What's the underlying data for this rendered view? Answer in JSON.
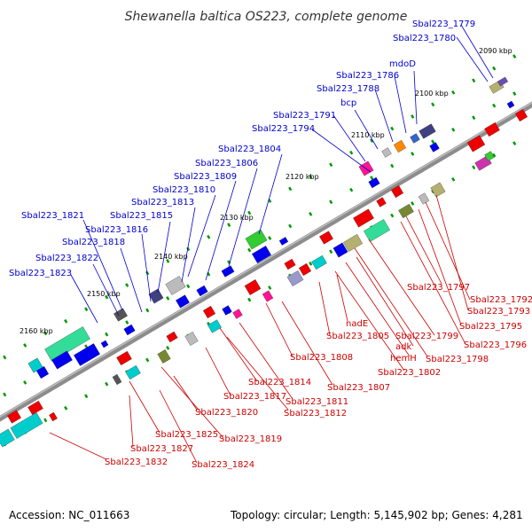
{
  "title": "Shewanella baltica OS223, complete genome",
  "footer": {
    "accession": "Accession: NC_011663",
    "summary": "Topology: circular; Length: 5,145,902 bp; Genes: 4,281"
  },
  "colors": {
    "backbone": "#8c8c8c",
    "label_top": "#0000cc",
    "label_bottom": "#cc0000",
    "tick": "#009900"
  },
  "kbp_labels": [
    {
      "text": "2090 kbp"
    },
    {
      "text": "2100 kbp"
    },
    {
      "text": "2110 kbp"
    },
    {
      "text": "2120 kbp"
    },
    {
      "text": "2130 kbp"
    },
    {
      "text": "2140 kbp"
    },
    {
      "text": "2150 kbp"
    },
    {
      "text": "2160 kbp"
    }
  ],
  "top_labels": [
    "Sbal223_1779",
    "Sbal223_1780",
    "mdoD",
    "Sbal223_1786",
    "Sbal223_1788",
    "bcp",
    "Sbal223_1791",
    "Sbal223_1794",
    "Sbal223_1804",
    "Sbal223_1806",
    "Sbal223_1809",
    "Sbal223_1810",
    "Sbal223_1813",
    "Sbal223_1815",
    "Sbal223_1821",
    "Sbal223_1816",
    "Sbal223_1818",
    "Sbal223_1822",
    "Sbal223_1823"
  ],
  "bottom_labels": [
    "Sbal223_1797",
    "Sbal223_1792",
    "Sbal223_1793",
    "Sbal223_1795",
    "Sbal223_1796",
    "Sbal223_1799",
    "Sbal223_1798",
    "adk",
    "hemH",
    "Sbal223_1802",
    "nadE",
    "Sbal223_1805",
    "Sbal223_1808",
    "Sbal223_1807",
    "Sbal223_1814",
    "Sbal223_1811",
    "Sbal223_1817",
    "Sbal223_1812",
    "Sbal223_1820",
    "Sbal223_1825",
    "Sbal223_1819",
    "Sbal223_1827",
    "Sbal223_1824",
    "Sbal223_1832"
  ]
}
